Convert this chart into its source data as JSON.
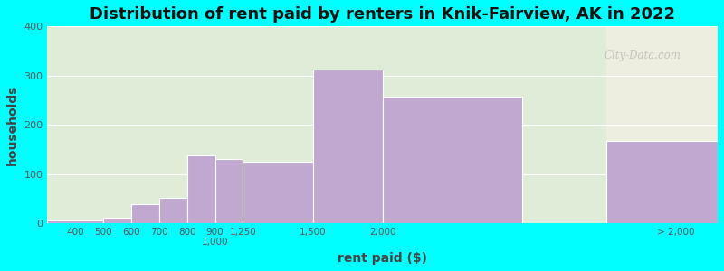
{
  "title": "Distribution of rent paid by renters in Knik-Fairview, AK in 2022",
  "xlabel": "rent paid ($)",
  "ylabel": "households",
  "bar_color": "#c0a8d0",
  "bg_color_left": "#deecd8",
  "bg_color_right": "#eeeee0",
  "outer_bg": "#00ffff",
  "ylim": [
    0,
    400
  ],
  "yticks": [
    0,
    100,
    200,
    300,
    400
  ],
  "title_fontsize": 13,
  "axis_label_fontsize": 10,
  "watermark_text": "City-Data.com",
  "bin_edges": [
    300,
    500,
    600,
    700,
    800,
    900,
    1000,
    1250,
    1500,
    2000,
    2300,
    2700
  ],
  "bar_heights": [
    5,
    12,
    38,
    52,
    138,
    130,
    125,
    313,
    258,
    0,
    168
  ],
  "tick_positions": [
    400,
    500,
    600,
    700,
    800,
    900,
    1000,
    1250,
    1500,
    2000,
    2300
  ],
  "tick_labels": [
    "400",
    "500",
    "600",
    "700",
    "800",
    "900 1,000",
    "1,250",
    "1,500",
    "2,000",
    "",
    "> 2,000"
  ],
  "split_x": 2300,
  "xmin": 300,
  "xmax": 2700
}
